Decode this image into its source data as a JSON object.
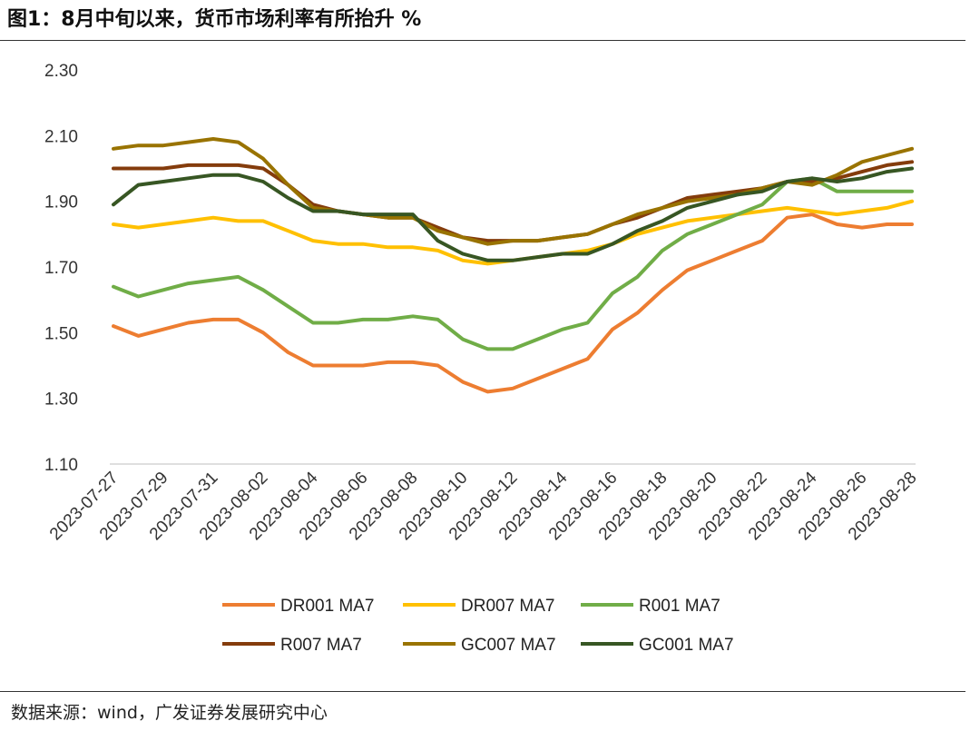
{
  "header": {
    "title": "图1：8月中旬以来，货币市场利率有所抬升  %"
  },
  "footer": {
    "source": "数据来源：wind，广发证券发展研究中心"
  },
  "chart_data": {
    "type": "line",
    "title": "图1：8月中旬以来，货币市场利率有所抬升  %",
    "xlabel": "",
    "ylabel": "",
    "ylim": [
      1.1,
      2.3
    ],
    "yticks": [
      1.1,
      1.3,
      1.5,
      1.7,
      1.9,
      2.1,
      2.3
    ],
    "ytick_labels": [
      "1.10",
      "1.30",
      "1.50",
      "1.70",
      "1.90",
      "2.10",
      "2.30"
    ],
    "x": [
      "2023-07-27",
      "2023-07-28",
      "2023-07-29",
      "2023-07-30",
      "2023-07-31",
      "2023-08-01",
      "2023-08-02",
      "2023-08-03",
      "2023-08-04",
      "2023-08-05",
      "2023-08-06",
      "2023-08-07",
      "2023-08-08",
      "2023-08-09",
      "2023-08-10",
      "2023-08-11",
      "2023-08-12",
      "2023-08-13",
      "2023-08-14",
      "2023-08-15",
      "2023-08-16",
      "2023-08-17",
      "2023-08-18",
      "2023-08-19",
      "2023-08-20",
      "2023-08-21",
      "2023-08-22",
      "2023-08-23",
      "2023-08-24",
      "2023-08-25",
      "2023-08-26",
      "2023-08-27",
      "2023-08-28"
    ],
    "xtick_labels": [
      "2023-07-27",
      "2023-07-29",
      "2023-07-31",
      "2023-08-02",
      "2023-08-04",
      "2023-08-06",
      "2023-08-08",
      "2023-08-10",
      "2023-08-12",
      "2023-08-14",
      "2023-08-16",
      "2023-08-18",
      "2023-08-20",
      "2023-08-22",
      "2023-08-24",
      "2023-08-26",
      "2023-08-28"
    ],
    "grid": false,
    "legend_position": "bottom",
    "series": [
      {
        "name": "DR001 MA7",
        "color": "#ED7D31",
        "values": [
          1.52,
          1.49,
          1.51,
          1.53,
          1.54,
          1.54,
          1.5,
          1.44,
          1.4,
          1.4,
          1.4,
          1.41,
          1.41,
          1.4,
          1.35,
          1.32,
          1.33,
          1.36,
          1.39,
          1.42,
          1.51,
          1.56,
          1.63,
          1.69,
          1.72,
          1.75,
          1.78,
          1.85,
          1.86,
          1.83,
          1.82,
          1.83,
          1.83
        ]
      },
      {
        "name": "DR007 MA7",
        "color": "#FFC000",
        "values": [
          1.83,
          1.82,
          1.83,
          1.84,
          1.85,
          1.84,
          1.84,
          1.81,
          1.78,
          1.77,
          1.77,
          1.76,
          1.76,
          1.75,
          1.72,
          1.71,
          1.72,
          1.73,
          1.74,
          1.75,
          1.77,
          1.8,
          1.82,
          1.84,
          1.85,
          1.86,
          1.87,
          1.88,
          1.87,
          1.86,
          1.87,
          1.88,
          1.9
        ]
      },
      {
        "name": "R001 MA7",
        "color": "#70AD47",
        "values": [
          1.64,
          1.61,
          1.63,
          1.65,
          1.66,
          1.67,
          1.63,
          1.58,
          1.53,
          1.53,
          1.54,
          1.54,
          1.55,
          1.54,
          1.48,
          1.45,
          1.45,
          1.48,
          1.51,
          1.53,
          1.62,
          1.67,
          1.75,
          1.8,
          1.83,
          1.86,
          1.89,
          1.96,
          1.97,
          1.93,
          1.93,
          1.93,
          1.93
        ]
      },
      {
        "name": "R007 MA7",
        "color": "#843C0C",
        "values": [
          2.0,
          2.0,
          2.0,
          2.01,
          2.01,
          2.01,
          2.0,
          1.95,
          1.89,
          1.87,
          1.86,
          1.85,
          1.85,
          1.82,
          1.79,
          1.78,
          1.78,
          1.78,
          1.79,
          1.8,
          1.83,
          1.85,
          1.88,
          1.91,
          1.92,
          1.93,
          1.94,
          1.96,
          1.96,
          1.97,
          1.99,
          2.01,
          2.02
        ]
      },
      {
        "name": "GC007 MA7",
        "color": "#997300",
        "values": [
          2.06,
          2.07,
          2.07,
          2.08,
          2.09,
          2.08,
          2.03,
          1.95,
          1.88,
          1.87,
          1.86,
          1.85,
          1.85,
          1.81,
          1.79,
          1.77,
          1.78,
          1.78,
          1.79,
          1.8,
          1.83,
          1.86,
          1.88,
          1.9,
          1.91,
          1.92,
          1.94,
          1.96,
          1.95,
          1.98,
          2.02,
          2.04,
          2.06
        ]
      },
      {
        "name": "GC001 MA7",
        "color": "#375623",
        "values": [
          1.89,
          1.95,
          1.96,
          1.97,
          1.98,
          1.98,
          1.96,
          1.91,
          1.87,
          1.87,
          1.86,
          1.86,
          1.86,
          1.78,
          1.74,
          1.72,
          1.72,
          1.73,
          1.74,
          1.74,
          1.77,
          1.81,
          1.84,
          1.88,
          1.9,
          1.92,
          1.93,
          1.96,
          1.97,
          1.96,
          1.97,
          1.99,
          2.0
        ]
      }
    ]
  }
}
